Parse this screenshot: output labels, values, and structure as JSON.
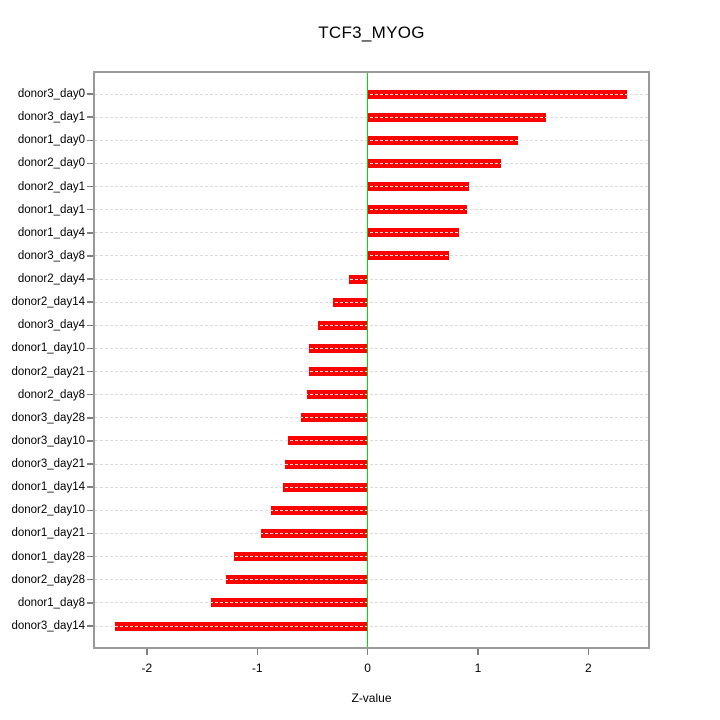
{
  "chart_data": {
    "type": "bar",
    "orientation": "horizontal",
    "title": "TCF3_MYOG",
    "xlabel": "Z-value",
    "categories": [
      "donor3_day0",
      "donor3_day1",
      "donor1_day0",
      "donor2_day0",
      "donor2_day1",
      "donor1_day1",
      "donor1_day4",
      "donor3_day8",
      "donor2_day4",
      "donor2_day14",
      "donor3_day4",
      "donor1_day10",
      "donor2_day21",
      "donor2_day8",
      "donor3_day28",
      "donor3_day10",
      "donor3_day21",
      "donor1_day14",
      "donor2_day10",
      "donor1_day21",
      "donor1_day28",
      "donor2_day28",
      "donor1_day8",
      "donor3_day14"
    ],
    "values": [
      2.35,
      1.62,
      1.36,
      1.21,
      0.92,
      0.9,
      0.83,
      0.74,
      -0.17,
      -0.31,
      -0.45,
      -0.53,
      -0.53,
      -0.55,
      -0.6,
      -0.72,
      -0.75,
      -0.77,
      -0.88,
      -0.97,
      -1.21,
      -1.28,
      -1.42,
      -2.29
    ],
    "xticks": [
      -2,
      -1,
      0,
      1,
      2
    ],
    "xtick_labels": [
      "-2",
      "-1",
      "0",
      "1",
      "2"
    ],
    "xlim": [
      -2.47,
      2.54
    ],
    "zero_reference_line": 0,
    "grid": "horizontal dashed line per category, full plot width, drawn over bars",
    "legend_position": "none",
    "colors": {
      "bar": "#fe0000",
      "zero_line": "#00dd00",
      "gridline": "#dcdcdc",
      "plot_border": "#999999",
      "tick": "#7f7f7f",
      "text": "#000000",
      "background": "#ffffff"
    }
  }
}
